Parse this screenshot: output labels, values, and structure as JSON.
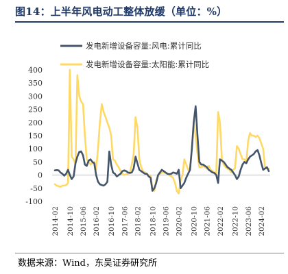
{
  "header": {
    "title": "图14：上半年风电动工整体放缓（单位：%）"
  },
  "footer": {
    "source": "数据来源：Wind，东吴证券研究所"
  },
  "chart_data": {
    "type": "line",
    "title": "图14：上半年风电动工整体放缓（单位：%）",
    "xlabel": "",
    "ylabel": "",
    "ylim": [
      -100,
      400
    ],
    "yticks": [
      -100,
      -50,
      0,
      50,
      100,
      150,
      200,
      250,
      300,
      350,
      400
    ],
    "x_tick_labels": [
      "2014-02",
      "2014-10",
      "2015-06",
      "2016-02",
      "2016-10",
      "2017-06",
      "2018-02",
      "2018-10",
      "2019-06",
      "2020-02",
      "2020-10",
      "2021-06",
      "2022-02",
      "2022-10",
      "2023-06",
      "2024-02"
    ],
    "grid": false,
    "legend_position": "top",
    "x": [
      "2014-02",
      "2014-03",
      "2014-04",
      "2014-05",
      "2014-06",
      "2014-07",
      "2014-08",
      "2014-09",
      "2014-10",
      "2014-11",
      "2014-12",
      "2015-02",
      "2015-03",
      "2015-04",
      "2015-05",
      "2015-06",
      "2015-07",
      "2015-08",
      "2015-09",
      "2015-10",
      "2015-11",
      "2015-12",
      "2016-02",
      "2016-03",
      "2016-04",
      "2016-05",
      "2016-06",
      "2016-07",
      "2016-08",
      "2016-09",
      "2016-10",
      "2016-11",
      "2016-12",
      "2017-02",
      "2017-03",
      "2017-04",
      "2017-05",
      "2017-06",
      "2017-07",
      "2017-08",
      "2017-09",
      "2017-10",
      "2017-11",
      "2017-12",
      "2018-02",
      "2018-03",
      "2018-04",
      "2018-05",
      "2018-06",
      "2018-07",
      "2018-08",
      "2018-09",
      "2018-10",
      "2018-11",
      "2018-12",
      "2019-02",
      "2019-03",
      "2019-04",
      "2019-05",
      "2019-06",
      "2019-07",
      "2019-08",
      "2019-09",
      "2019-10",
      "2019-11",
      "2019-12",
      "2020-02",
      "2020-03",
      "2020-04",
      "2020-05",
      "2020-06",
      "2020-07",
      "2020-08",
      "2020-09",
      "2020-10",
      "2020-11",
      "2020-12",
      "2021-02",
      "2021-03",
      "2021-04",
      "2021-05",
      "2021-06",
      "2021-07",
      "2021-08",
      "2021-09",
      "2021-10",
      "2021-11",
      "2021-12",
      "2022-02",
      "2022-03",
      "2022-04",
      "2022-05",
      "2022-06",
      "2022-07",
      "2022-08",
      "2022-09",
      "2022-10",
      "2022-11",
      "2022-12",
      "2023-02",
      "2023-03",
      "2023-04",
      "2023-05",
      "2023-06",
      "2023-07",
      "2023-08",
      "2023-09",
      "2023-10",
      "2023-11",
      "2023-12",
      "2024-02",
      "2024-03",
      "2024-04",
      "2024-05",
      "2024-06"
    ],
    "series": [
      {
        "name": "发电新增设备容量:风电:累计同比",
        "color": "#44546a",
        "values": [
          18,
          19,
          18,
          10,
          5,
          -2,
          5,
          20,
          0,
          -15,
          -5,
          45,
          70,
          88,
          90,
          75,
          40,
          35,
          55,
          60,
          50,
          45,
          0,
          -25,
          -35,
          -38,
          -40,
          -35,
          -25,
          90,
          40,
          10,
          5,
          -5,
          0,
          5,
          15,
          18,
          15,
          10,
          8,
          10,
          25,
          70,
          45,
          20,
          15,
          10,
          5,
          5,
          -5,
          -10,
          -60,
          -50,
          -30,
          0,
          10,
          20,
          15,
          10,
          5,
          3,
          5,
          10,
          8,
          5,
          20,
          -50,
          -40,
          -30,
          -10,
          5,
          20,
          100,
          200,
          262,
          150,
          50,
          40,
          40,
          35,
          30,
          20,
          15,
          10,
          8,
          0,
          -30,
          60,
          55,
          50,
          40,
          30,
          25,
          20,
          10,
          0,
          -15,
          -5,
          20,
          40,
          50,
          45,
          60,
          70,
          75,
          80,
          90,
          95,
          75,
          45,
          20,
          25,
          30,
          15
        ]
      },
      {
        "name": "发电新增设备容量:太阳能:累计同比",
        "color": "#ffd966",
        "values": [
          -35,
          -40,
          -42,
          -45,
          -40,
          -40,
          -38,
          -30,
          400,
          70,
          60,
          40,
          380,
          300,
          280,
          270,
          150,
          60,
          50,
          40,
          45,
          50,
          20,
          100,
          200,
          270,
          240,
          220,
          200,
          180,
          150,
          60,
          55,
          40,
          30,
          15,
          5,
          0,
          3,
          5,
          10,
          40,
          80,
          220,
          180,
          60,
          30,
          15,
          10,
          5,
          0,
          -5,
          -50,
          -60,
          -20,
          -5,
          5,
          10,
          10,
          8,
          5,
          0,
          -5,
          -10,
          -30,
          -60,
          -70,
          -20,
          0,
          60,
          40,
          20,
          25,
          100,
          200,
          150,
          80,
          30,
          30,
          35,
          30,
          25,
          35,
          20,
          15,
          10,
          5,
          240,
          200,
          60,
          40,
          30,
          25,
          20,
          10,
          20,
          25,
          110,
          100,
          80,
          60,
          60,
          50,
          130,
          160,
          150,
          150,
          145,
          150,
          140,
          120,
          100,
          30,
          25,
          25
        ]
      }
    ]
  }
}
